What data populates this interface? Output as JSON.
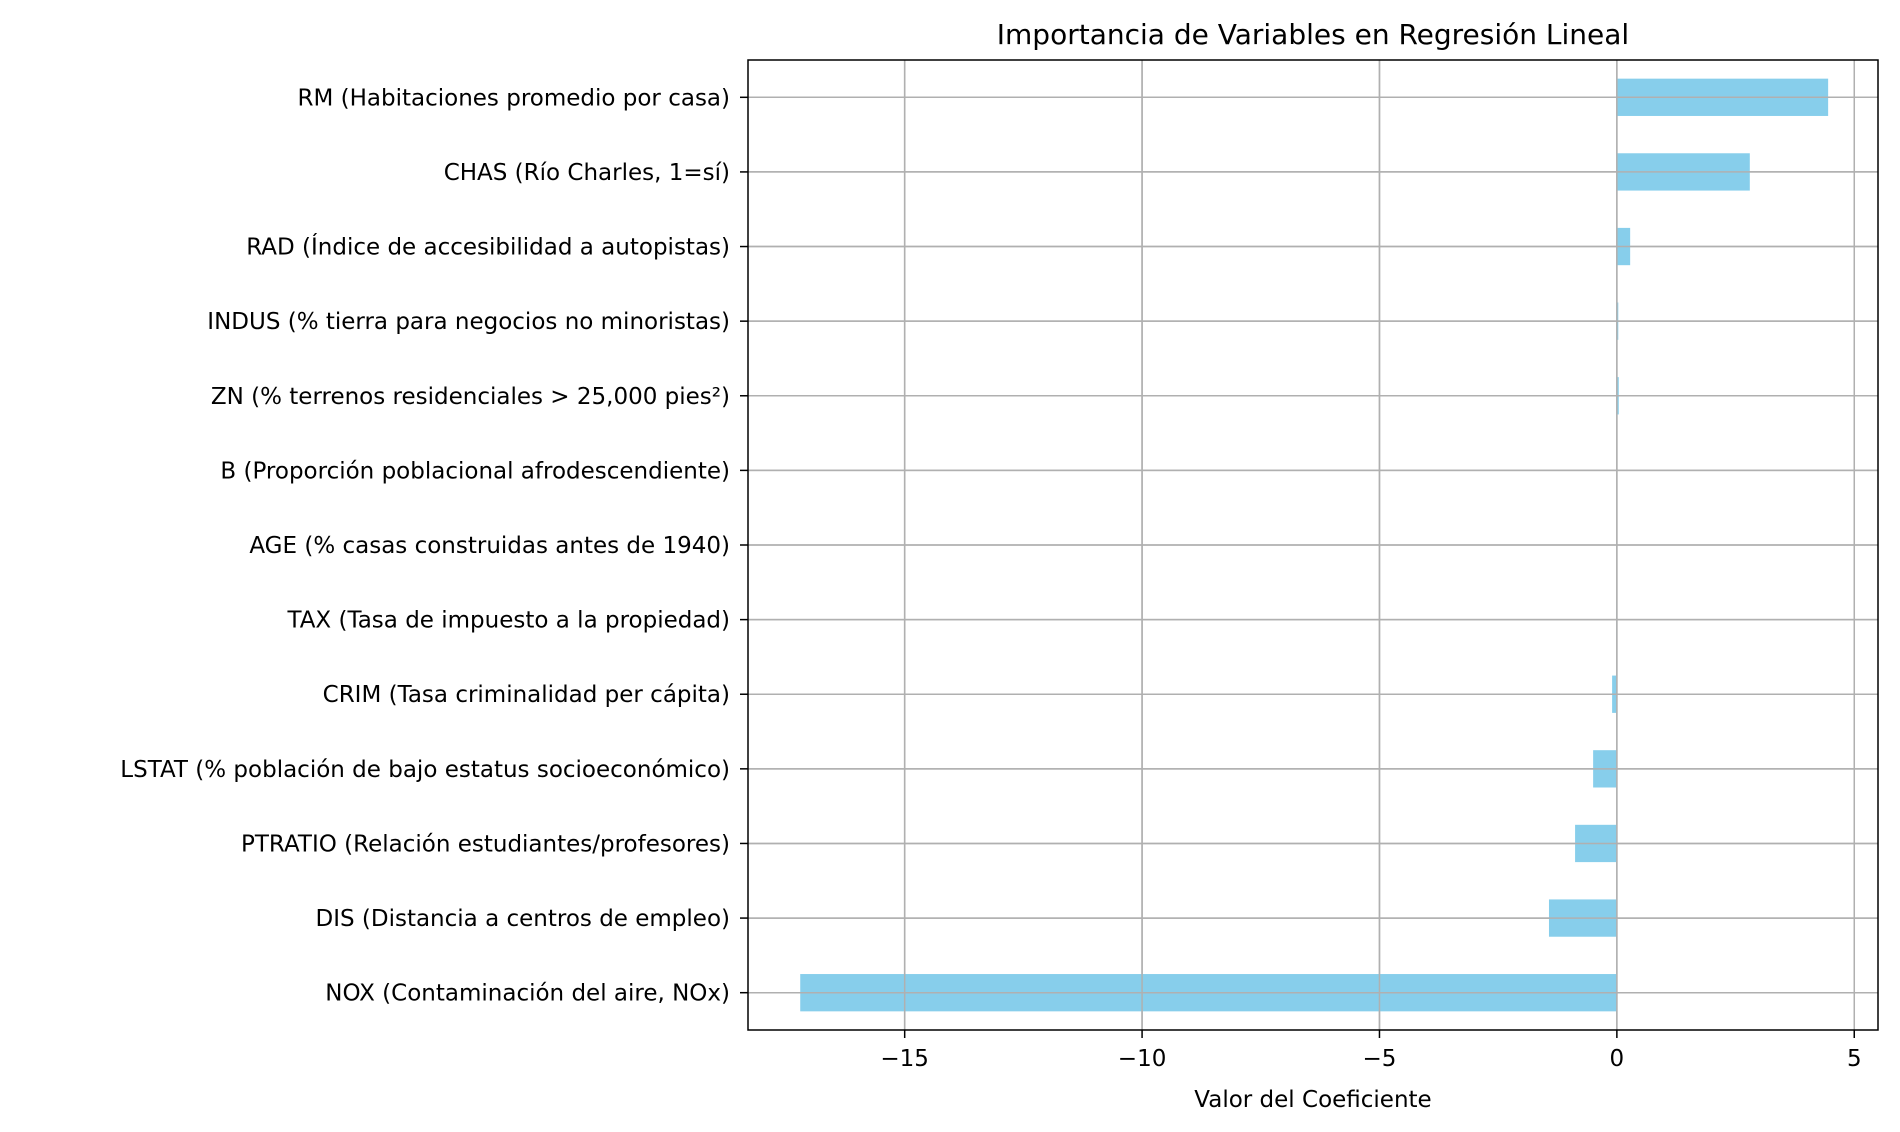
{
  "chart_data": {
    "type": "bar",
    "orientation": "horizontal",
    "title": "Importancia de Variables en Regresión Lineal",
    "xlabel": "Valor del Coeficiente",
    "ylabel": "",
    "categories": [
      "NOX (Contaminación del aire, NOx)",
      "DIS (Distancia a centros de empleo)",
      "PTRATIO (Relación estudiantes/profesores)",
      "LSTAT (% población de bajo estatus socioeconómico)",
      "CRIM (Tasa criminalidad per cápita)",
      "TAX (Tasa de impuesto a la propiedad)",
      "AGE (% casas construidas antes de 1940)",
      "B (Proporción poblacional afrodescendiente)",
      "ZN (% terrenos residenciales > 25,000 pies²)",
      "INDUS (% tierra para negocios no minoristas)",
      "RAD (Índice de accesibilidad a autopistas)",
      "CHAS (Río Charles, 1=sí)",
      "RM (Habitaciones promedio por casa)"
    ],
    "values": [
      -17.2,
      -1.43,
      -0.88,
      -0.5,
      -0.1,
      -0.01,
      0.0,
      0.01,
      0.04,
      0.03,
      0.28,
      2.8,
      4.45
    ],
    "xlim": [
      -18.3,
      5.5
    ],
    "xticks": [
      -15,
      -10,
      -5,
      0,
      5
    ],
    "xtick_labels": [
      "−15",
      "−10",
      "−5",
      "0",
      "5"
    ],
    "grid": true,
    "bar_color": "#87ceeb",
    "grid_color": "#b0b0b0"
  }
}
